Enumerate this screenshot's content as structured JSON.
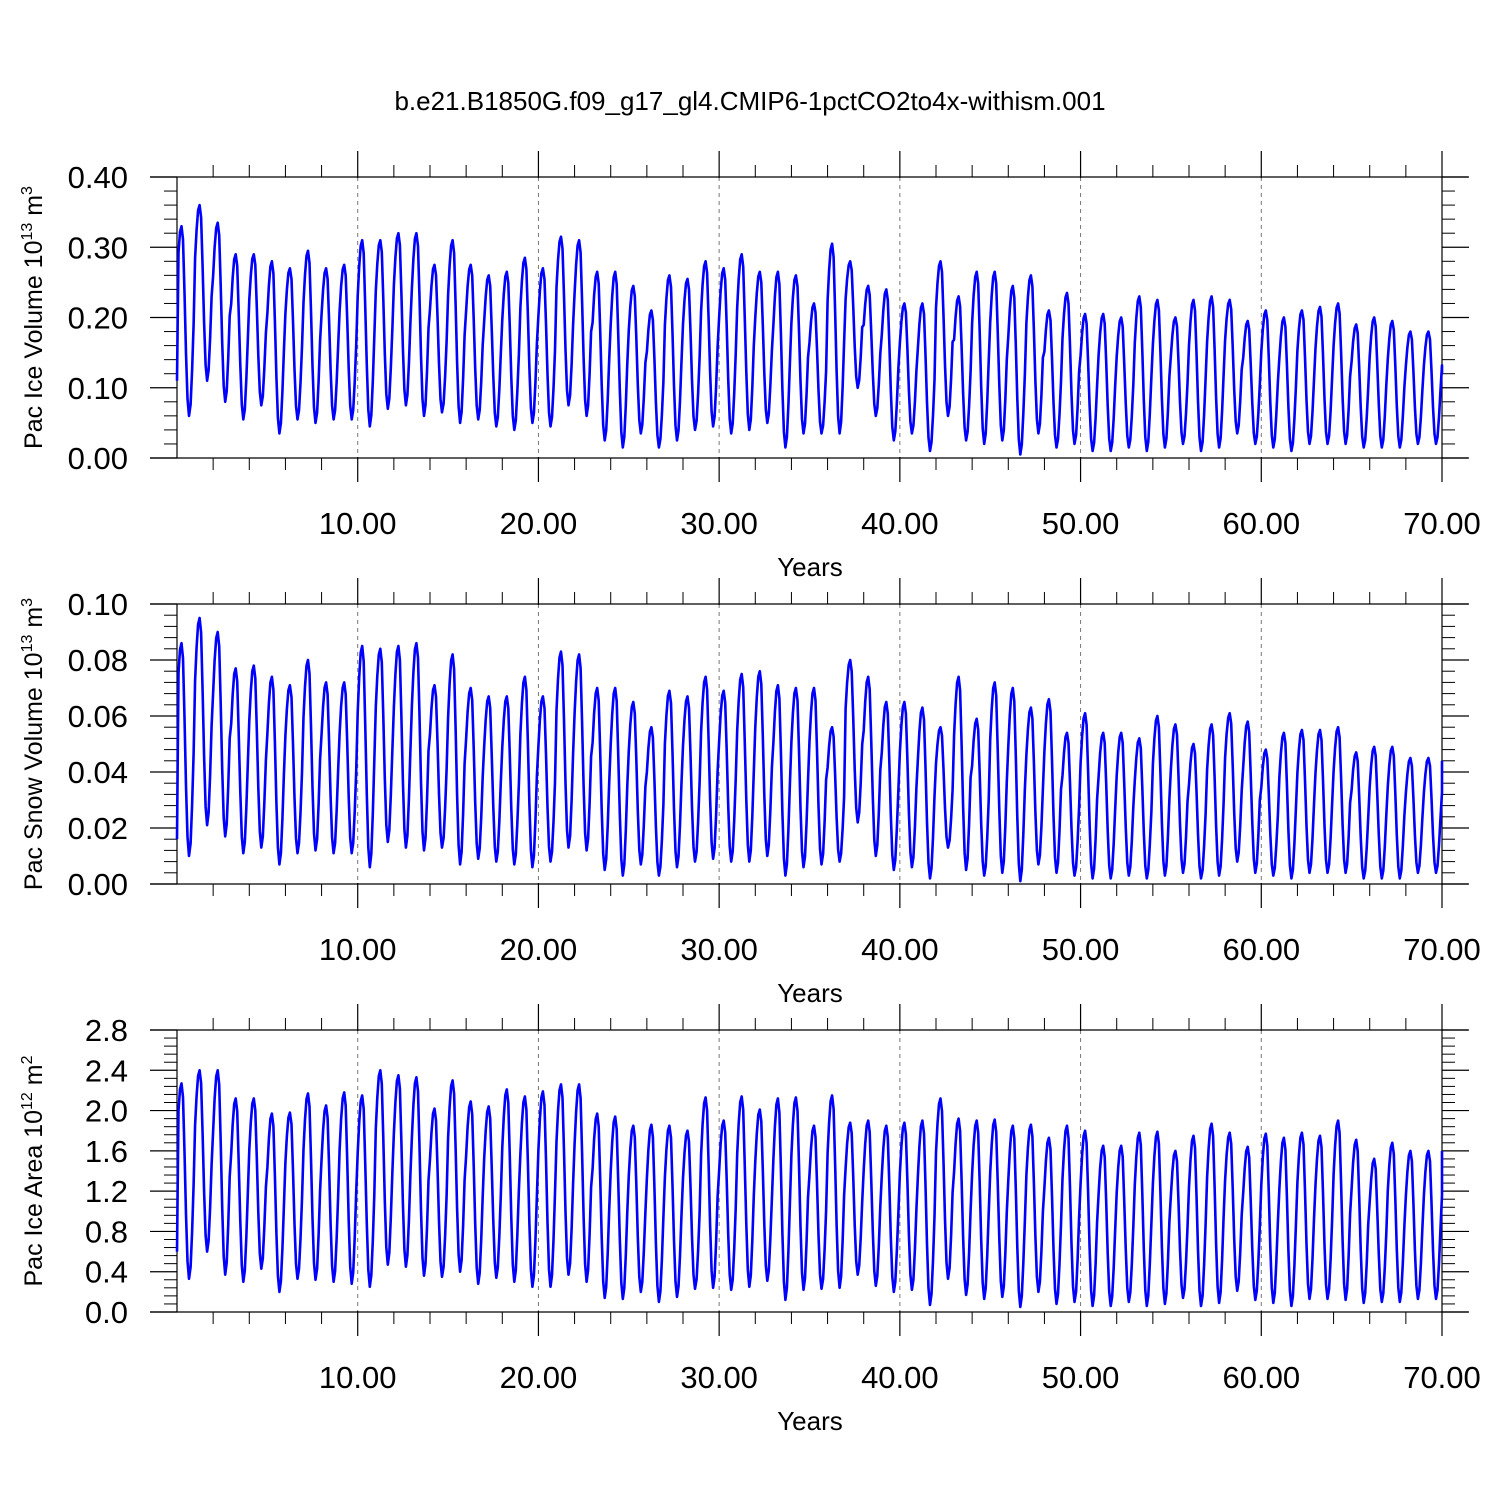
{
  "title": "b.e21.B1850G.f09_g17_gl4.CMIP6-1pctCO2to4x-withism.001",
  "chart_data": [
    {
      "type": "line",
      "title": "",
      "xlabel": "Years",
      "ylabel": {
        "base": "Pac Ice Volume 10",
        "exp": "13",
        "unit": " m",
        "unit_exp": "3"
      },
      "xlim": [
        0,
        70
      ],
      "ylim": [
        0.0,
        0.4
      ],
      "xticks": [
        10,
        20,
        30,
        40,
        50,
        60,
        70
      ],
      "xtick_labels": [
        "10.00",
        "20.00",
        "30.00",
        "40.00",
        "50.00",
        "60.00",
        "70.00"
      ],
      "yticks": [
        0.0,
        0.1,
        0.2,
        0.3,
        0.4
      ],
      "ytick_labels": [
        "0.00",
        "0.10",
        "0.20",
        "0.30",
        "0.40"
      ],
      "grid": "vertical dashed at major x ticks",
      "line_color": "#0000ff",
      "series": [
        {
          "cycle": "monthly (12 points per year), peak in spring, minimum in early autumn",
          "annual_max": [
            0.33,
            0.36,
            0.335,
            0.29,
            0.29,
            0.28,
            0.27,
            0.295,
            0.27,
            0.275,
            0.31,
            0.31,
            0.32,
            0.32,
            0.275,
            0.31,
            0.275,
            0.26,
            0.265,
            0.285,
            0.27,
            0.315,
            0.31,
            0.265,
            0.265,
            0.245,
            0.21,
            0.26,
            0.255,
            0.28,
            0.27,
            0.29,
            0.265,
            0.265,
            0.26,
            0.22,
            0.305,
            0.28,
            0.245,
            0.24,
            0.22,
            0.22,
            0.28,
            0.23,
            0.265,
            0.265,
            0.245,
            0.26,
            0.21,
            0.235,
            0.205,
            0.205,
            0.2,
            0.23,
            0.225,
            0.2,
            0.225,
            0.23,
            0.225,
            0.195,
            0.21,
            0.2,
            0.21,
            0.215,
            0.22,
            0.19,
            0.2,
            0.195,
            0.18
          ],
          "annual_min": [
            0.06,
            0.11,
            0.08,
            0.055,
            0.075,
            0.035,
            0.055,
            0.05,
            0.055,
            0.055,
            0.045,
            0.07,
            0.075,
            0.06,
            0.065,
            0.05,
            0.055,
            0.045,
            0.04,
            0.05,
            0.045,
            0.075,
            0.06,
            0.025,
            0.015,
            0.035,
            0.015,
            0.025,
            0.04,
            0.045,
            0.035,
            0.04,
            0.05,
            0.015,
            0.035,
            0.035,
            0.035,
            0.1,
            0.06,
            0.025,
            0.035,
            0.01,
            0.06,
            0.025,
            0.02,
            0.025,
            0.005,
            0.035,
            0.015,
            0.02,
            0.01,
            0.01,
            0.015,
            0.01,
            0.015,
            0.02,
            0.01,
            0.015,
            0.035,
            0.02,
            0.015,
            0.01,
            0.02,
            0.02,
            0.02,
            0.015,
            0.015,
            0.015,
            0.02
          ],
          "start_value": 0.11,
          "end_value": 0.12
        }
      ]
    },
    {
      "type": "line",
      "title": "",
      "xlabel": "Years",
      "ylabel": {
        "base": "Pac Snow Volume 10",
        "exp": "13",
        "unit": " m",
        "unit_exp": "3"
      },
      "xlim": [
        0,
        70
      ],
      "ylim": [
        0.0,
        0.1
      ],
      "xticks": [
        10,
        20,
        30,
        40,
        50,
        60,
        70
      ],
      "xtick_labels": [
        "10.00",
        "20.00",
        "30.00",
        "40.00",
        "50.00",
        "60.00",
        "70.00"
      ],
      "yticks": [
        0.0,
        0.02,
        0.04,
        0.06,
        0.08,
        0.1
      ],
      "ytick_labels": [
        "0.00",
        "0.02",
        "0.04",
        "0.06",
        "0.08",
        "0.10"
      ],
      "grid": "vertical dashed at major x ticks",
      "line_color": "#0000ff",
      "series": [
        {
          "cycle": "monthly (12 points per year), peak in spring, minimum in early autumn",
          "annual_max": [
            0.086,
            0.095,
            0.09,
            0.077,
            0.078,
            0.074,
            0.071,
            0.08,
            0.072,
            0.072,
            0.085,
            0.084,
            0.085,
            0.086,
            0.071,
            0.082,
            0.07,
            0.067,
            0.067,
            0.074,
            0.067,
            0.083,
            0.082,
            0.07,
            0.07,
            0.065,
            0.056,
            0.069,
            0.067,
            0.074,
            0.069,
            0.075,
            0.076,
            0.071,
            0.07,
            0.07,
            0.056,
            0.08,
            0.074,
            0.065,
            0.065,
            0.063,
            0.056,
            0.074,
            0.059,
            0.072,
            0.07,
            0.063,
            0.066,
            0.054,
            0.061,
            0.054,
            0.054,
            0.052,
            0.06,
            0.057,
            0.05,
            0.057,
            0.061,
            0.058,
            0.048,
            0.054,
            0.055,
            0.055,
            0.056,
            0.047,
            0.049,
            0.049,
            0.045
          ],
          "annual_min": [
            0.01,
            0.021,
            0.017,
            0.011,
            0.013,
            0.007,
            0.011,
            0.012,
            0.011,
            0.011,
            0.006,
            0.015,
            0.013,
            0.012,
            0.013,
            0.007,
            0.009,
            0.008,
            0.007,
            0.006,
            0.008,
            0.013,
            0.012,
            0.005,
            0.003,
            0.007,
            0.003,
            0.006,
            0.008,
            0.009,
            0.008,
            0.008,
            0.01,
            0.003,
            0.006,
            0.007,
            0.008,
            0.022,
            0.01,
            0.005,
            0.006,
            0.002,
            0.013,
            0.005,
            0.003,
            0.004,
            0.001,
            0.007,
            0.004,
            0.003,
            0.002,
            0.002,
            0.003,
            0.002,
            0.003,
            0.004,
            0.002,
            0.003,
            0.008,
            0.004,
            0.003,
            0.002,
            0.004,
            0.004,
            0.004,
            0.002,
            0.002,
            0.002,
            0.004
          ],
          "start_value": 0.016,
          "end_value": 0.044
        }
      ]
    },
    {
      "type": "line",
      "title": "",
      "xlabel": "Years",
      "ylabel": {
        "base": "Pac Ice Area 10",
        "exp": "12",
        "unit": " m",
        "unit_exp": "2"
      },
      "xlim": [
        0,
        70
      ],
      "ylim": [
        0.0,
        2.8
      ],
      "xticks": [
        10,
        20,
        30,
        40,
        50,
        60,
        70
      ],
      "xtick_labels": [
        "10.00",
        "20.00",
        "30.00",
        "40.00",
        "50.00",
        "60.00",
        "70.00"
      ],
      "yticks": [
        0.0,
        0.4,
        0.8,
        1.2,
        1.6,
        2.0,
        2.4,
        2.8
      ],
      "ytick_labels": [
        "0.0",
        "0.4",
        "0.8",
        "1.2",
        "1.6",
        "2.0",
        "2.4",
        "2.8"
      ],
      "grid": "vertical dashed at major x ticks",
      "line_color": "#0000ff",
      "series": [
        {
          "cycle": "monthly (12 points per year), peak in spring, minimum in early autumn",
          "annual_max": [
            2.27,
            2.4,
            2.4,
            2.12,
            2.12,
            1.97,
            1.98,
            2.17,
            2.05,
            2.18,
            2.15,
            2.4,
            2.35,
            2.33,
            2.02,
            2.3,
            2.09,
            2.04,
            2.21,
            2.14,
            2.19,
            2.26,
            2.26,
            1.97,
            1.94,
            1.85,
            1.86,
            1.85,
            1.8,
            2.13,
            1.9,
            2.14,
            2.01,
            2.12,
            2.13,
            1.85,
            2.15,
            1.88,
            1.9,
            1.85,
            1.88,
            1.9,
            2.12,
            1.92,
            1.9,
            1.91,
            1.85,
            1.86,
            1.73,
            1.85,
            1.8,
            1.65,
            1.65,
            1.78,
            1.79,
            1.6,
            1.75,
            1.87,
            1.78,
            1.64,
            1.77,
            1.73,
            1.78,
            1.75,
            1.9,
            1.71,
            1.52,
            1.68,
            1.6
          ],
          "annual_min": [
            0.33,
            0.6,
            0.37,
            0.3,
            0.43,
            0.2,
            0.33,
            0.32,
            0.3,
            0.28,
            0.25,
            0.47,
            0.45,
            0.36,
            0.35,
            0.4,
            0.28,
            0.34,
            0.3,
            0.25,
            0.25,
            0.37,
            0.3,
            0.14,
            0.13,
            0.2,
            0.1,
            0.15,
            0.23,
            0.24,
            0.22,
            0.25,
            0.31,
            0.12,
            0.22,
            0.23,
            0.24,
            0.37,
            0.26,
            0.2,
            0.22,
            0.07,
            0.33,
            0.17,
            0.13,
            0.15,
            0.05,
            0.2,
            0.08,
            0.1,
            0.06,
            0.06,
            0.1,
            0.06,
            0.08,
            0.14,
            0.06,
            0.09,
            0.21,
            0.12,
            0.09,
            0.06,
            0.13,
            0.13,
            0.12,
            0.09,
            0.1,
            0.1,
            0.13
          ],
          "start_value": 0.6,
          "end_value": 1.6
        }
      ]
    }
  ]
}
